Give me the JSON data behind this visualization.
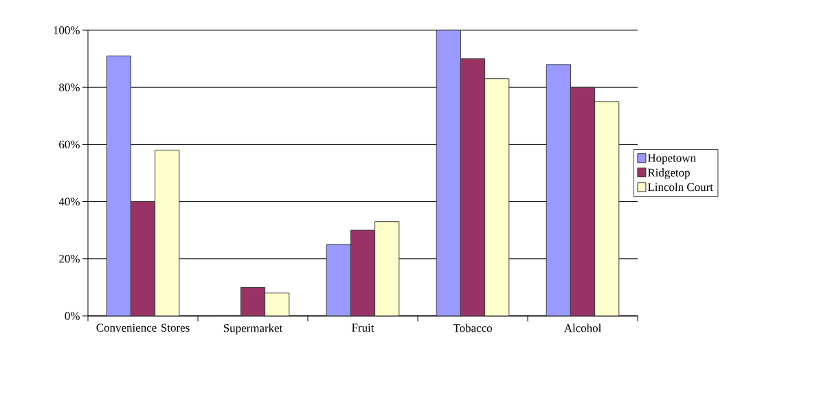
{
  "chart_data": {
    "type": "bar",
    "categories": [
      "Convenience Stores",
      "Supermarket",
      "Fruit",
      "Tobacco",
      "Alcohol"
    ],
    "series": [
      {
        "name": "Hopetown",
        "color": "#9999ff",
        "values": [
          91,
          0,
          25,
          100,
          88
        ]
      },
      {
        "name": "Ridgetop",
        "color": "#993366",
        "values": [
          40,
          10,
          30,
          90,
          80
        ]
      },
      {
        "name": "Lincoln Court",
        "color": "#ffffcc",
        "values": [
          58,
          8,
          33,
          83,
          75
        ]
      }
    ],
    "ylim": [
      0,
      100
    ],
    "yticks": [
      {
        "value": 0,
        "label": "0%"
      },
      {
        "value": 20,
        "label": "20%"
      },
      {
        "value": 40,
        "label": "40%"
      },
      {
        "value": 60,
        "label": "60%"
      },
      {
        "value": 80,
        "label": "80%"
      },
      {
        "value": 100,
        "label": "100%"
      }
    ],
    "grid": "y",
    "legend": "right"
  }
}
